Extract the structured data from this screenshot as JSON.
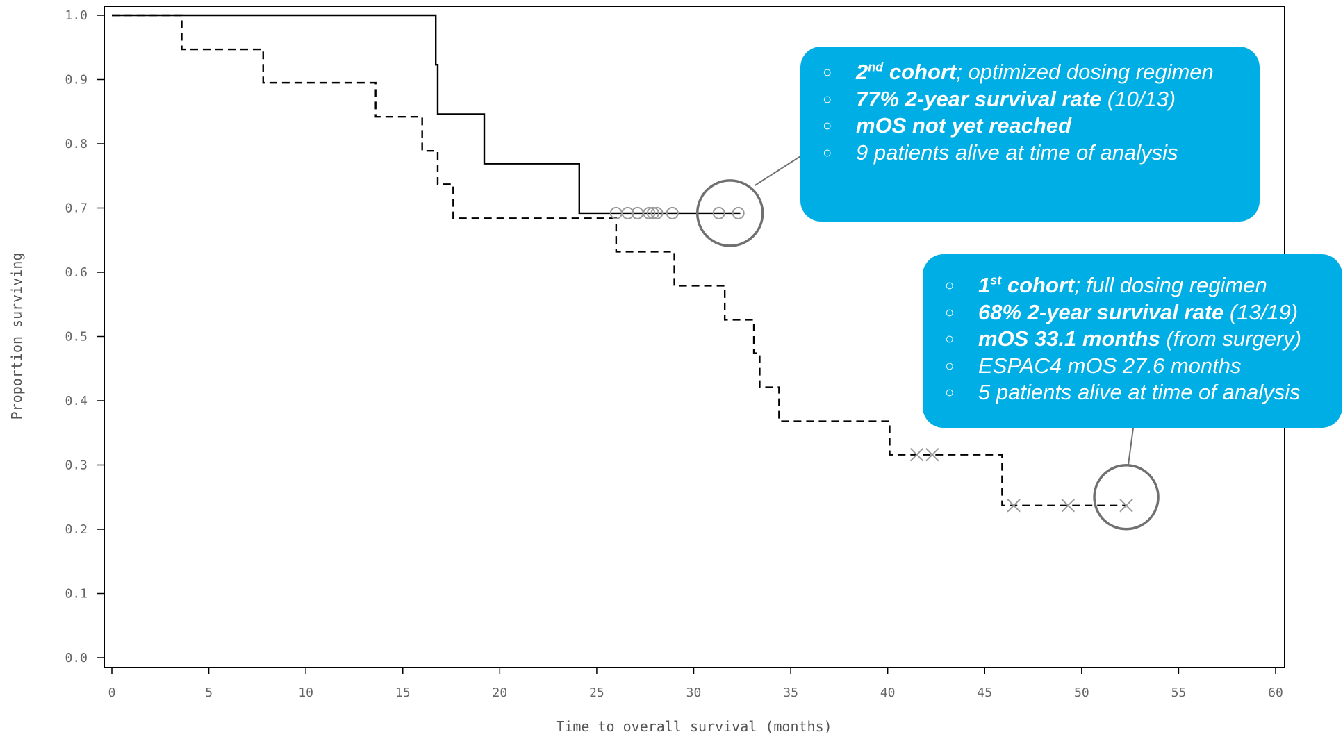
{
  "chart_data": {
    "type": "line",
    "chart_subtype": "kaplan-meier survival curve",
    "xlabel": "Time to overall survival (months)",
    "ylabel": "Proportion surviving",
    "xlim": [
      0,
      60
    ],
    "ylim": [
      0.0,
      1.0
    ],
    "x_ticks": [
      "0",
      "5",
      "10",
      "15",
      "20",
      "25",
      "30",
      "35",
      "40",
      "45",
      "50",
      "55",
      "60"
    ],
    "y_ticks": [
      "0.0",
      "0.1",
      "0.2",
      "0.3",
      "0.4",
      "0.5",
      "0.6",
      "0.7",
      "0.8",
      "0.9",
      "1.0"
    ],
    "grid": false,
    "legend": "none",
    "series": [
      {
        "line_style": "solid",
        "color": "#000000",
        "censor_marker": "circle",
        "steps": [
          {
            "t": 0,
            "s": 1.0
          },
          {
            "t": 16.7,
            "s": 0.923
          },
          {
            "t": 16.8,
            "s": 0.846
          },
          {
            "t": 19.2,
            "s": 0.769
          },
          {
            "t": 24.1,
            "s": 0.692
          }
        ],
        "end_time": 32.4,
        "censored": [
          26.0,
          26.6,
          27.1,
          27.7,
          27.9,
          28.1,
          28.9,
          31.3,
          32.3
        ]
      },
      {
        "line_style": "dashed",
        "color": "#000000",
        "censor_marker": "x",
        "steps": [
          {
            "t": 0,
            "s": 1.0
          },
          {
            "t": 3.6,
            "s": 0.947
          },
          {
            "t": 7.8,
            "s": 0.895
          },
          {
            "t": 13.6,
            "s": 0.842
          },
          {
            "t": 16.0,
            "s": 0.789
          },
          {
            "t": 16.8,
            "s": 0.737
          },
          {
            "t": 17.6,
            "s": 0.684
          },
          {
            "t": 26.0,
            "s": 0.632
          },
          {
            "t": 29.0,
            "s": 0.579
          },
          {
            "t": 31.6,
            "s": 0.526
          },
          {
            "t": 33.1,
            "s": 0.474
          },
          {
            "t": 33.4,
            "s": 0.421
          },
          {
            "t": 34.4,
            "s": 0.368
          },
          {
            "t": 40.1,
            "s": 0.316
          },
          {
            "t": 45.9,
            "s": 0.237
          }
        ],
        "end_time": 52.3,
        "censored": [
          41.5,
          42.3,
          46.5,
          49.3,
          52.3
        ]
      }
    ],
    "annotations": [
      {
        "target": "solid-curve-end",
        "items": [
          {
            "bold": "2",
            "sup": "nd",
            "bold_after": " cohort",
            "rest": "; optimized dosing regimen"
          },
          {
            "bold": "77% 2-year survival rate",
            "rest": " (10/13)"
          },
          {
            "bold": "mOS not yet reached",
            "rest": ""
          },
          {
            "bold": "",
            "rest": "9 patients alive at time of analysis"
          }
        ]
      },
      {
        "target": "dashed-curve-end",
        "items": [
          {
            "bold": "1",
            "sup": "st",
            "bold_after": " cohort",
            "rest": "; full dosing regimen"
          },
          {
            "bold": "68% 2-year survival rate",
            "rest": " (13/19)"
          },
          {
            "bold": "mOS 33.1 months",
            "rest": " (from surgery)"
          },
          {
            "bold": "",
            "rest": "ESPAC4 mOS 27.6 months"
          },
          {
            "bold": "",
            "rest": "5 patients alive at time of analysis"
          }
        ]
      }
    ]
  },
  "colors": {
    "callout_fill": "#00aee6",
    "callout_text": "#ffffff",
    "highlight_circle": "#707070",
    "censor_mark": "#9a9a9a"
  },
  "bullet_glyph": "○"
}
